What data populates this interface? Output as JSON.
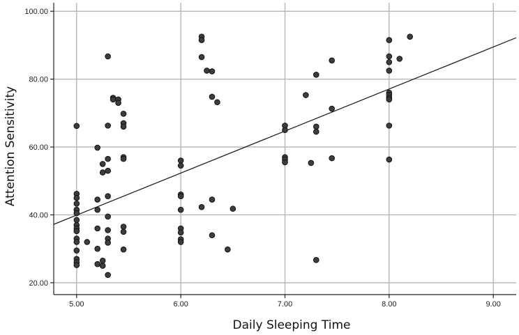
{
  "chart_data": {
    "type": "scatter",
    "xlabel": "Daily Sleeping Time",
    "ylabel": "Attention Sensitivity",
    "xlim": [
      4.78,
      9.22
    ],
    "ylim": [
      16.5,
      102.5
    ],
    "x_ticks": [
      "5.00",
      "6.00",
      "7.00",
      "8.00",
      "9.00"
    ],
    "y_ticks": [
      "20.00",
      "40.00",
      "60.00",
      "80.00",
      "100.00"
    ],
    "x_tick_values": [
      5,
      6,
      7,
      8,
      9
    ],
    "y_tick_values": [
      20,
      40,
      60,
      80,
      100
    ],
    "grid": true,
    "fit_line": {
      "x": [
        4.78,
        9.22
      ],
      "y": [
        37.2,
        92.2
      ]
    },
    "points": [
      [
        5.0,
        66.2
      ],
      [
        5.0,
        46.2
      ],
      [
        5.0,
        45.0
      ],
      [
        5.0,
        43.3
      ],
      [
        5.0,
        41.5
      ],
      [
        5.0,
        40.5
      ],
      [
        5.0,
        38.5
      ],
      [
        5.0,
        37.0
      ],
      [
        5.0,
        36.0
      ],
      [
        5.0,
        35.2
      ],
      [
        5.0,
        33.0
      ],
      [
        5.0,
        32.0
      ],
      [
        5.0,
        29.5
      ],
      [
        5.0,
        27.0
      ],
      [
        5.0,
        26.0
      ],
      [
        5.0,
        25.2
      ],
      [
        5.1,
        32.0
      ],
      [
        5.2,
        59.8
      ],
      [
        5.2,
        44.5
      ],
      [
        5.2,
        41.5
      ],
      [
        5.2,
        36.0
      ],
      [
        5.2,
        30.0
      ],
      [
        5.2,
        25.5
      ],
      [
        5.25,
        55.0
      ],
      [
        5.25,
        52.5
      ],
      [
        5.25,
        26.5
      ],
      [
        5.25,
        25.0
      ],
      [
        5.3,
        86.7
      ],
      [
        5.3,
        66.3
      ],
      [
        5.3,
        56.5
      ],
      [
        5.3,
        53.0
      ],
      [
        5.3,
        45.5
      ],
      [
        5.3,
        39.5
      ],
      [
        5.3,
        35.5
      ],
      [
        5.3,
        33.0
      ],
      [
        5.3,
        31.8
      ],
      [
        5.3,
        22.3
      ],
      [
        5.35,
        74.5
      ],
      [
        5.35,
        74.0
      ],
      [
        5.4,
        74.0
      ],
      [
        5.4,
        73.0
      ],
      [
        5.45,
        69.8
      ],
      [
        5.45,
        67.0
      ],
      [
        5.45,
        66.0
      ],
      [
        5.45,
        57.0
      ],
      [
        5.45,
        56.5
      ],
      [
        5.45,
        36.5
      ],
      [
        5.45,
        35.0
      ],
      [
        5.45,
        29.8
      ],
      [
        6.0,
        56.0
      ],
      [
        6.0,
        54.5
      ],
      [
        6.0,
        46.0
      ],
      [
        6.0,
        45.5
      ],
      [
        6.0,
        41.5
      ],
      [
        6.0,
        36.0
      ],
      [
        6.0,
        34.8
      ],
      [
        6.0,
        32.8
      ],
      [
        6.0,
        32.0
      ],
      [
        6.2,
        92.5
      ],
      [
        6.2,
        91.5
      ],
      [
        6.2,
        86.5
      ],
      [
        6.2,
        42.3
      ],
      [
        6.25,
        82.5
      ],
      [
        6.3,
        82.3
      ],
      [
        6.3,
        74.8
      ],
      [
        6.3,
        44.5
      ],
      [
        6.3,
        34.0
      ],
      [
        6.35,
        73.2
      ],
      [
        6.45,
        29.8
      ],
      [
        6.5,
        41.8
      ],
      [
        7.0,
        66.3
      ],
      [
        7.0,
        65.0
      ],
      [
        7.0,
        57.0
      ],
      [
        7.0,
        56.3
      ],
      [
        7.0,
        55.5
      ],
      [
        7.2,
        75.3
      ],
      [
        7.25,
        55.3
      ],
      [
        7.3,
        81.3
      ],
      [
        7.3,
        66.0
      ],
      [
        7.3,
        64.5
      ],
      [
        7.3,
        26.7
      ],
      [
        7.45,
        85.5
      ],
      [
        7.45,
        71.3
      ],
      [
        7.45,
        56.7
      ],
      [
        8.0,
        91.5
      ],
      [
        8.0,
        86.7
      ],
      [
        8.0,
        85.0
      ],
      [
        8.0,
        82.5
      ],
      [
        8.0,
        76.0
      ],
      [
        8.0,
        75.3
      ],
      [
        8.0,
        74.5
      ],
      [
        8.0,
        74.0
      ],
      [
        8.0,
        66.3
      ],
      [
        8.0,
        56.3
      ],
      [
        8.1,
        86.0
      ],
      [
        8.2,
        92.5
      ]
    ]
  }
}
